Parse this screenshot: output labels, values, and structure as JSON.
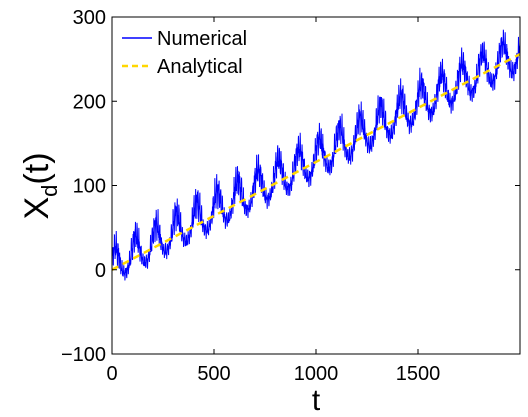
{
  "chart_data": {
    "type": "line",
    "xlabel": "t",
    "ylabel_main": "X",
    "ylabel_sub": "d",
    "ylabel_suffix": "(t)",
    "xlim": [
      0,
      2000
    ],
    "ylim": [
      -100,
      300
    ],
    "xticks": [
      0,
      500,
      1000,
      1500
    ],
    "xtick_labels": [
      "0",
      "500",
      "1000",
      "1500"
    ],
    "yticks": [
      -100,
      0,
      100,
      200,
      300
    ],
    "ytick_labels": [
      "−100",
      "0",
      "100",
      "200",
      "300"
    ],
    "grid": false,
    "legend_position": "top-left",
    "series": [
      {
        "name": "Numerical",
        "color": "#0000ff",
        "style": "solid",
        "trend": {
          "x": [
            0,
            2000
          ],
          "y": [
            0,
            256
          ]
        },
        "band": {
          "x": [
            0,
            500,
            1000,
            1500,
            2000
          ],
          "y_low": [
            -22,
            40,
            100,
            165,
            225
          ],
          "y_high": [
            45,
            115,
            175,
            240,
            298
          ]
        }
      },
      {
        "name": "Analytical",
        "color": "#ffd700",
        "style": "dashed",
        "x": [
          0,
          2000
        ],
        "y": [
          0,
          256
        ]
      }
    ]
  }
}
